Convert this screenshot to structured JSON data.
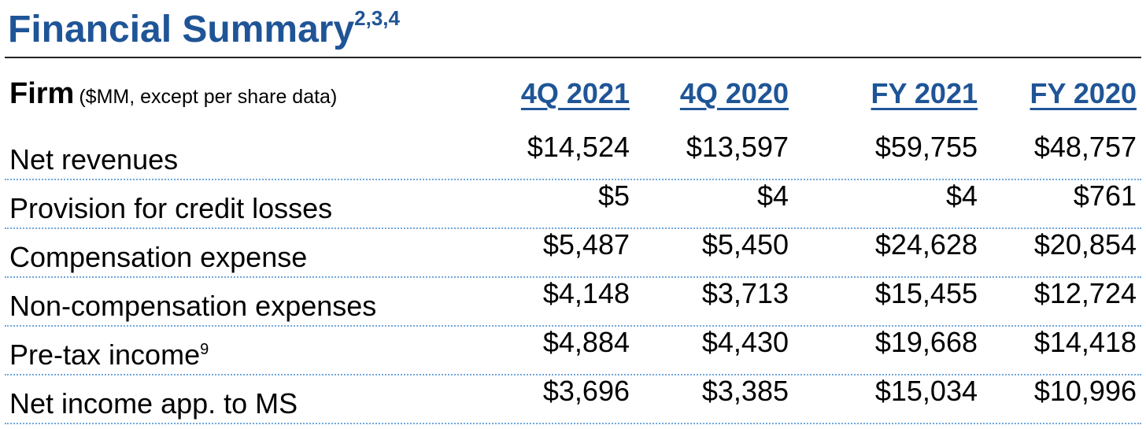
{
  "title": {
    "text": "Financial Summary",
    "superscript": "2,3,4"
  },
  "header": {
    "firm_label": "Firm",
    "units_note": "($MM, except per share data)",
    "columns": [
      "4Q 2021",
      "4Q 2020",
      "FY 2021",
      "FY 2020"
    ]
  },
  "rows": [
    {
      "label": "Net revenues",
      "footnote": "",
      "values": [
        "$14,524",
        "$13,597",
        "$59,755",
        "$48,757"
      ]
    },
    {
      "label": "Provision for credit losses",
      "footnote": "",
      "values": [
        "$5",
        "$4",
        "$4",
        "$761"
      ]
    },
    {
      "label": "Compensation expense",
      "footnote": "",
      "values": [
        "$5,487",
        "$5,450",
        "$24,628",
        "$20,854"
      ]
    },
    {
      "label": "Non-compensation expenses",
      "footnote": "",
      "values": [
        "$4,148",
        "$3,713",
        "$15,455",
        "$12,724"
      ]
    },
    {
      "label": "Pre-tax income",
      "footnote": "9",
      "values": [
        "$4,884",
        "$4,430",
        "$19,668",
        "$14,418"
      ]
    },
    {
      "label": "Net income app. to MS",
      "footnote": "",
      "values": [
        "$3,696",
        "$3,385",
        "$15,034",
        "$10,996"
      ]
    }
  ],
  "colors": {
    "title": "#1f5597",
    "column_header": "#1f5597",
    "row_divider": "#6fa8dc",
    "title_rule": "#222222"
  }
}
